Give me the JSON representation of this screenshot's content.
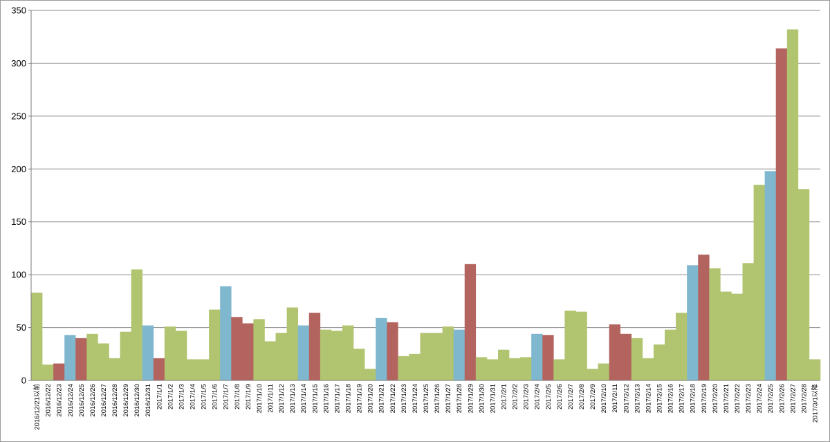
{
  "chart_data": {
    "type": "bar",
    "ylim": [
      0,
      350
    ],
    "yticks": [
      0,
      50,
      100,
      150,
      200,
      250,
      300,
      350
    ],
    "grid": true,
    "colors": {
      "green": "#b1c46f",
      "blue": "#7fb7cf",
      "red": "#b3645f",
      "gridline": "#8c8c8c",
      "axis": "#7a7a7a"
    },
    "categories": [
      "2016/12/21以前",
      "2016/12/22",
      "2016/12/23",
      "2016/12/24",
      "2016/12/25",
      "2016/12/26",
      "2016/12/27",
      "2016/12/28",
      "2016/12/29",
      "2016/12/30",
      "2016/12/31",
      "2017/1/1",
      "2017/1/2",
      "2017/1/3",
      "2017/1/4",
      "2017/1/5",
      "2017/1/6",
      "2017/1/7",
      "2017/1/8",
      "2017/1/9",
      "2017/1/10",
      "2017/1/11",
      "2017/1/12",
      "2017/1/13",
      "2017/1/14",
      "2017/1/15",
      "2017/1/16",
      "2017/1/17",
      "2017/1/18",
      "2017/1/19",
      "2017/1/20",
      "2017/1/21",
      "2017/1/22",
      "2017/1/23",
      "2017/1/24",
      "2017/1/25",
      "2017/1/26",
      "2017/1/27",
      "2017/1/28",
      "2017/1/29",
      "2017/1/30",
      "2017/1/31",
      "2017/2/1",
      "2017/2/2",
      "2017/2/3",
      "2017/2/4",
      "2017/2/5",
      "2017/2/6",
      "2017/2/7",
      "2017/2/8",
      "2017/2/9",
      "2017/2/10",
      "2017/2/11",
      "2017/2/12",
      "2017/2/13",
      "2017/2/14",
      "2017/2/15",
      "2017/2/16",
      "2017/2/17",
      "2017/2/18",
      "2017/2/19",
      "2017/2/20",
      "2017/2/21",
      "2017/2/22",
      "2017/2/23",
      "2017/2/24",
      "2017/2/25",
      "2017/2/26",
      "2017/2/27",
      "2017/2/28",
      "2017/3/1以降"
    ],
    "values": [
      83,
      15,
      16,
      43,
      40,
      44,
      35,
      21,
      46,
      105,
      52,
      21,
      51,
      47,
      20,
      20,
      67,
      89,
      60,
      54,
      58,
      37,
      45,
      69,
      52,
      64,
      48,
      47,
      52,
      30,
      11,
      59,
      55,
      23,
      25,
      45,
      45,
      51,
      48,
      110,
      22,
      20,
      29,
      21,
      22,
      44,
      43,
      20,
      66,
      65,
      11,
      16,
      53,
      44,
      40,
      21,
      34,
      48,
      64,
      109,
      119,
      106,
      84,
      82,
      111,
      185,
      198,
      314,
      332,
      181,
      20
    ],
    "bar_colors": [
      "green",
      "green",
      "red",
      "blue",
      "red",
      "green",
      "green",
      "green",
      "green",
      "green",
      "blue",
      "red",
      "green",
      "green",
      "green",
      "green",
      "green",
      "blue",
      "red",
      "red",
      "green",
      "green",
      "green",
      "green",
      "blue",
      "red",
      "green",
      "green",
      "green",
      "green",
      "green",
      "blue",
      "red",
      "green",
      "green",
      "green",
      "green",
      "green",
      "blue",
      "red",
      "green",
      "green",
      "green",
      "green",
      "green",
      "blue",
      "red",
      "green",
      "green",
      "green",
      "green",
      "green",
      "red",
      "red",
      "green",
      "green",
      "green",
      "green",
      "green",
      "blue",
      "red",
      "green",
      "green",
      "green",
      "green",
      "green",
      "blue",
      "red",
      "green",
      "green",
      "green"
    ]
  }
}
